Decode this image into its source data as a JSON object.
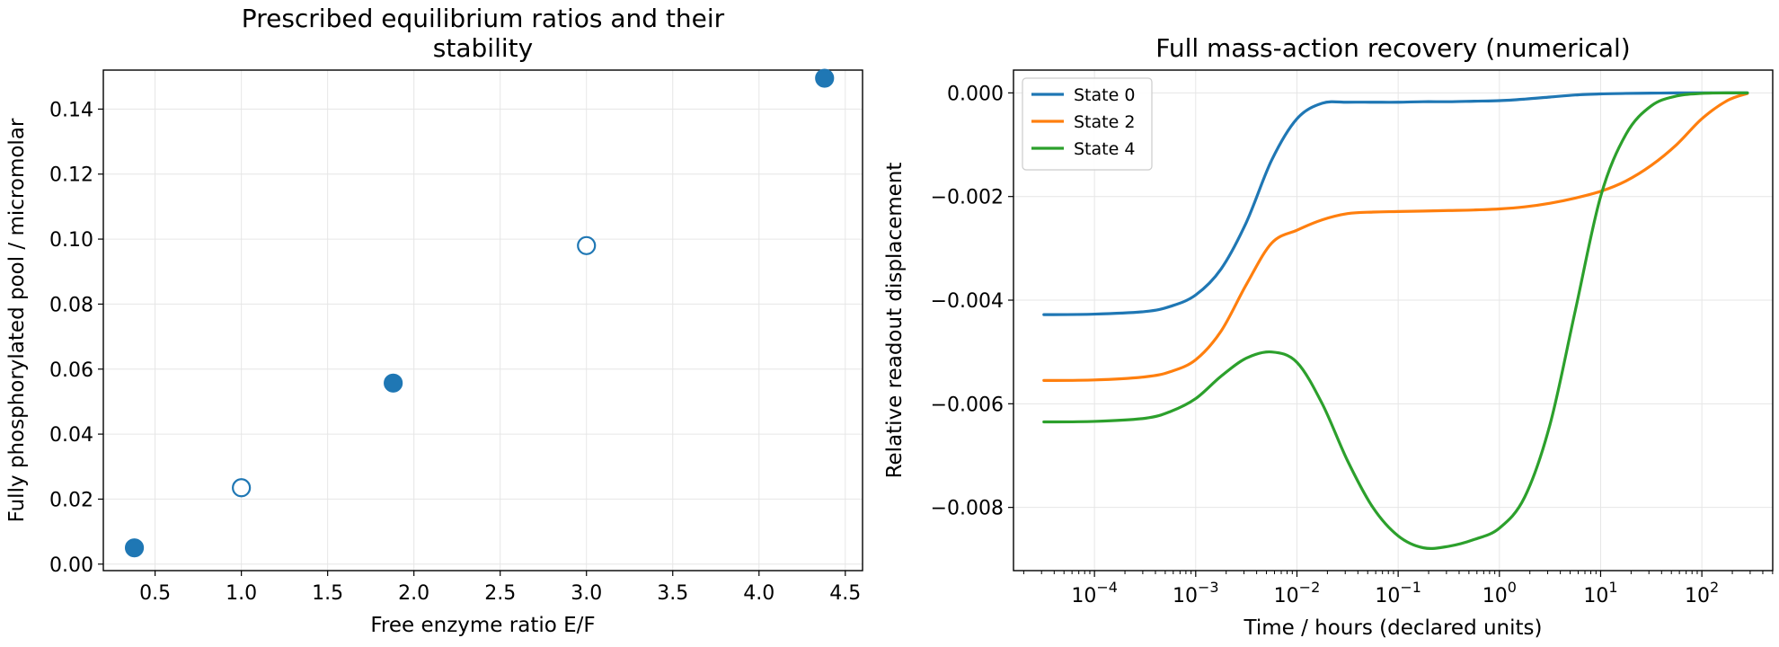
{
  "chart_data": [
    {
      "type": "scatter",
      "title_lines": [
        "Prescribed equilibrium ratios and their",
        "stability"
      ],
      "xlabel": "Free enzyme ratio E/F",
      "ylabel": "Fully phosphorylated pool / micromolar",
      "xlim": [
        0.2,
        4.6
      ],
      "ylim": [
        -0.002,
        0.152
      ],
      "xticks": [
        0.5,
        1.0,
        1.5,
        2.0,
        2.5,
        3.0,
        3.5,
        4.0,
        4.5
      ],
      "xtick_labels": [
        "0.5",
        "1.0",
        "1.5",
        "2.0",
        "2.5",
        "3.0",
        "3.5",
        "4.0",
        "4.5"
      ],
      "yticks": [
        0.0,
        0.02,
        0.04,
        0.06,
        0.08,
        0.1,
        0.12,
        0.14
      ],
      "ytick_labels": [
        "0.00",
        "0.02",
        "0.04",
        "0.06",
        "0.08",
        "0.10",
        "0.12",
        "0.14"
      ],
      "grid": true,
      "color": "#1f77b4",
      "points": [
        {
          "x": 0.38,
          "y": 0.005,
          "filled": true
        },
        {
          "x": 1.0,
          "y": 0.0235,
          "filled": false
        },
        {
          "x": 1.88,
          "y": 0.0557,
          "filled": true
        },
        {
          "x": 3.0,
          "y": 0.098,
          "filled": false
        },
        {
          "x": 4.38,
          "y": 0.1495,
          "filled": true
        }
      ]
    },
    {
      "type": "line",
      "title": "Full mass-action recovery (numerical)",
      "xlabel": "Time / hours (declared units)",
      "ylabel": "Relative readout displacement",
      "xscale": "log",
      "xlim_log10": [
        -4.8,
        2.7
      ],
      "ylim": [
        -0.00922,
        0.00044
      ],
      "xtick_exponents": [
        -4,
        -3,
        -2,
        -1,
        0,
        1,
        2
      ],
      "ytick_values": [
        0.0,
        -0.002,
        -0.004,
        -0.006,
        -0.008
      ],
      "ytick_labels": [
        "0.000",
        "−0.002",
        "−0.004",
        "−0.006",
        "−0.008"
      ],
      "grid": true,
      "legend_position": "upper-left",
      "x_log10": [
        -4.5,
        -4.0,
        -3.5,
        -3.25,
        -3.0,
        -2.75,
        -2.5,
        -2.25,
        -2.0,
        -1.75,
        -1.5,
        -1.25,
        -1.0,
        -0.75,
        -0.5,
        -0.25,
        0.0,
        0.25,
        0.5,
        0.75,
        1.0,
        1.25,
        1.5,
        1.75,
        2.0,
        2.25,
        2.45
      ],
      "series": [
        {
          "name": "State 0",
          "color": "#1f77b4",
          "y": [
            -0.00428,
            -0.00427,
            -0.00422,
            -0.00412,
            -0.0039,
            -0.0034,
            -0.0025,
            -0.0013,
            -0.0005,
            -0.0002,
            -0.00018,
            -0.00018,
            -0.00018,
            -0.00017,
            -0.00017,
            -0.00016,
            -0.00015,
            -0.00012,
            -8e-05,
            -4e-05,
            -2e-05,
            -1e-05,
            -5e-06,
            0.0,
            0.0,
            0.0,
            0.0
          ]
        },
        {
          "name": "State 2",
          "color": "#ff7f0e",
          "y": [
            -0.00555,
            -0.00554,
            -0.00548,
            -0.00538,
            -0.00515,
            -0.0046,
            -0.0037,
            -0.0029,
            -0.00265,
            -0.00245,
            -0.00233,
            -0.0023,
            -0.00229,
            -0.00228,
            -0.00227,
            -0.00226,
            -0.00224,
            -0.0022,
            -0.00213,
            -0.00203,
            -0.0019,
            -0.0017,
            -0.0014,
            -0.001,
            -0.0005,
            -0.00015,
            -1e-05
          ]
        },
        {
          "name": "State 4",
          "color": "#2ca02c",
          "y": [
            -0.00635,
            -0.00634,
            -0.00628,
            -0.00615,
            -0.0059,
            -0.00547,
            -0.00512,
            -0.005,
            -0.0052,
            -0.006,
            -0.0071,
            -0.008,
            -0.00855,
            -0.00878,
            -0.00875,
            -0.00862,
            -0.0084,
            -0.0078,
            -0.0064,
            -0.0042,
            -0.002,
            -0.0008,
            -0.00025,
            -6e-05,
            -1e-05,
            0.0,
            0.0
          ]
        }
      ]
    }
  ]
}
